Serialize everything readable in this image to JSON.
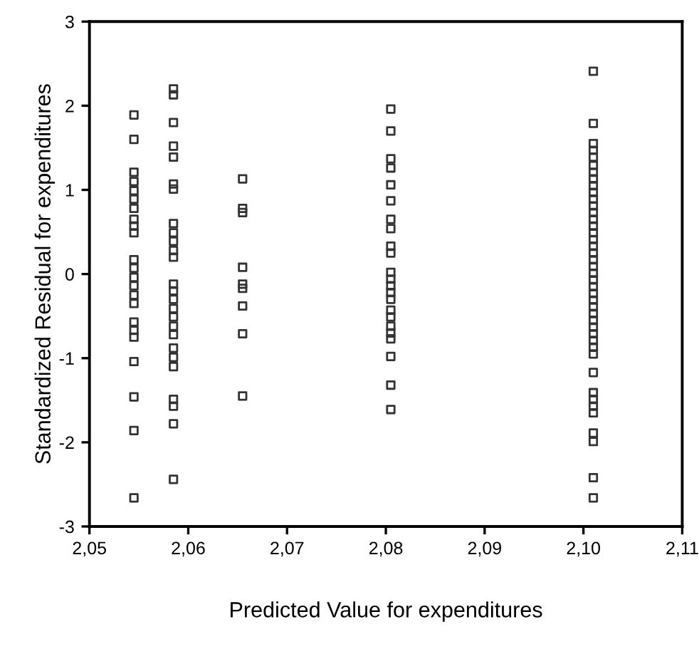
{
  "chart_data": {
    "type": "scatter",
    "xlabel": "Predicted Value for expenditures",
    "ylabel": "Standardized Residual for expenditures",
    "xlim": [
      2.05,
      2.11
    ],
    "ylim": [
      -3,
      3
    ],
    "xticks": [
      {
        "value": 2.05,
        "label": "2,05"
      },
      {
        "value": 2.06,
        "label": "2,06"
      },
      {
        "value": 2.07,
        "label": "2,07"
      },
      {
        "value": 2.08,
        "label": "2,08"
      },
      {
        "value": 2.09,
        "label": "2,09"
      },
      {
        "value": 2.1,
        "label": "2,10"
      },
      {
        "value": 2.11,
        "label": "2,11"
      }
    ],
    "yticks": [
      -3,
      -2,
      -1,
      0,
      1,
      2,
      3
    ],
    "marker": "square",
    "grid": false,
    "legend": false,
    "series": [
      {
        "color": "#333333",
        "x": [
          2.0545,
          2.0545,
          2.0545,
          2.0545,
          2.0545,
          2.0545,
          2.0545,
          2.0545,
          2.0545,
          2.0545,
          2.0545,
          2.0545,
          2.0545,
          2.0545,
          2.0545,
          2.0545,
          2.0545,
          2.0545,
          2.0545,
          2.0545,
          2.0545,
          2.0545,
          2.0545,
          2.0585,
          2.0585,
          2.0585,
          2.0585,
          2.0585,
          2.0585,
          2.0585,
          2.0585,
          2.0585,
          2.0585,
          2.0585,
          2.0585,
          2.0585,
          2.0585,
          2.0585,
          2.0585,
          2.0585,
          2.0585,
          2.0585,
          2.0585,
          2.0585,
          2.0585,
          2.0585,
          2.0585,
          2.0585,
          2.0585,
          2.0655,
          2.0655,
          2.0655,
          2.0655,
          2.0655,
          2.0655,
          2.0655,
          2.0655,
          2.0655,
          2.0805,
          2.0805,
          2.0805,
          2.0805,
          2.0805,
          2.0805,
          2.0805,
          2.0805,
          2.0805,
          2.0805,
          2.0805,
          2.0805,
          2.0805,
          2.0805,
          2.0805,
          2.0805,
          2.0805,
          2.0805,
          2.0805,
          2.0805,
          2.0805,
          2.0805,
          2.0805,
          2.101,
          2.101,
          2.101,
          2.101,
          2.101,
          2.101,
          2.101,
          2.101,
          2.101,
          2.101,
          2.101,
          2.101,
          2.101,
          2.101,
          2.101,
          2.101,
          2.101,
          2.101,
          2.101,
          2.101,
          2.101,
          2.101,
          2.101,
          2.101,
          2.101,
          2.101,
          2.101,
          2.101,
          2.101,
          2.101,
          2.101,
          2.101,
          2.101,
          2.101,
          2.101,
          2.101,
          2.101,
          2.101,
          2.101,
          2.101,
          2.101,
          2.101,
          2.101
        ],
        "values": [
          1.89,
          1.6,
          1.21,
          1.1,
          0.99,
          0.89,
          0.78,
          0.65,
          0.57,
          0.49,
          0.17,
          0.07,
          -0.04,
          -0.14,
          -0.25,
          -0.35,
          -0.57,
          -0.67,
          -0.75,
          -1.04,
          -1.46,
          -1.86,
          -2.66,
          2.2,
          2.13,
          1.8,
          1.52,
          1.39,
          1.07,
          1.01,
          0.6,
          0.49,
          0.39,
          0.28,
          0.2,
          -0.12,
          -0.2,
          -0.3,
          -0.41,
          -0.51,
          -0.62,
          -0.72,
          -0.88,
          -0.99,
          -1.1,
          -1.49,
          -1.57,
          -1.78,
          -2.44,
          1.13,
          0.78,
          0.73,
          0.08,
          -0.12,
          -0.17,
          -0.38,
          -0.71,
          -1.45,
          1.96,
          1.7,
          1.37,
          1.26,
          1.06,
          0.87,
          0.65,
          0.54,
          0.33,
          0.25,
          0.02,
          -0.06,
          -0.14,
          -0.22,
          -0.3,
          -0.43,
          -0.51,
          -0.62,
          -0.7,
          -0.77,
          -0.98,
          -1.32,
          -1.61,
          2.41,
          1.79,
          1.55,
          1.47,
          1.39,
          1.29,
          1.21,
          1.13,
          1.05,
          0.97,
          0.89,
          0.81,
          0.73,
          0.65,
          0.57,
          0.49,
          0.41,
          0.33,
          0.25,
          0.17,
          0.09,
          0.01,
          -0.07,
          -0.15,
          -0.23,
          -0.31,
          -0.39,
          -0.47,
          -0.55,
          -0.63,
          -0.71,
          -0.79,
          -0.87,
          -0.95,
          -1.17,
          -1.41,
          -1.49,
          -1.57,
          -1.65,
          -1.89,
          -1.99,
          -2.42,
          -2.66
        ]
      }
    ]
  }
}
